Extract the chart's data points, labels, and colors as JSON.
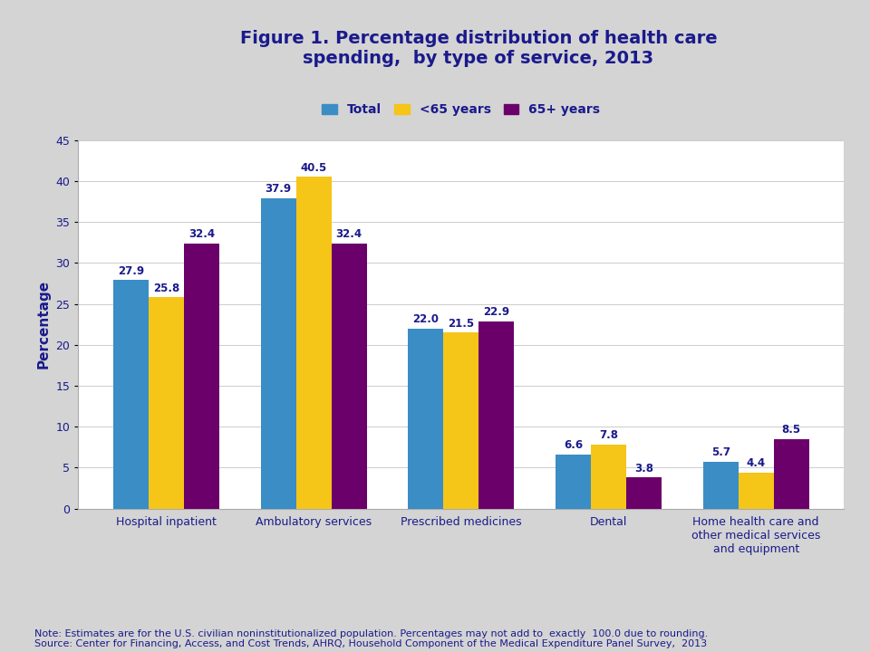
{
  "title_line1": "Figure 1. Percentage distribution of health care",
  "title_line2": "spending,  by type of service, 2013",
  "title_color": "#1a1a8c",
  "title_fontsize": 14,
  "ylabel": "Percentage",
  "ylabel_color": "#1a1a8c",
  "ylabel_fontsize": 11,
  "categories": [
    "Hospital inpatient",
    "Ambulatory services",
    "Prescribed medicines",
    "Dental",
    "Home health care and\nother medical services\nand equipment"
  ],
  "series": {
    "Total": [
      27.9,
      37.9,
      22.0,
      6.6,
      5.7
    ],
    "<65 years": [
      25.8,
      40.5,
      21.5,
      7.8,
      4.4
    ],
    "65+ years": [
      32.4,
      32.4,
      22.9,
      3.8,
      8.5
    ]
  },
  "colors": {
    "Total": "#3a8dc5",
    "<65 years": "#f5c518",
    "65+ years": "#6b006b"
  },
  "legend_labels": [
    "Total",
    "<65 years",
    "65+ years"
  ],
  "ylim": [
    0,
    45
  ],
  "yticks": [
    0,
    5,
    10,
    15,
    20,
    25,
    30,
    35,
    40,
    45
  ],
  "bar_label_fontsize": 8.5,
  "bar_label_color": "#1a1a8c",
  "note_text": "Note: Estimates are for the U.S. civilian noninstitutionalized population. Percentages may not add to  exactly  100.0 due to rounding.\nSource: Center for Financing, Access, and Cost Trends, AHRQ, Household Component of the Medical Expenditure Panel Survey,  2013",
  "note_fontsize": 8,
  "note_color": "#1a1a8c",
  "fig_bg_color": "#d4d4d4",
  "header_bg_color": "#c8c8c8",
  "plot_area_bg": "#f0f0f0",
  "white_area_bg": "#ffffff",
  "separator_color": "#999999"
}
